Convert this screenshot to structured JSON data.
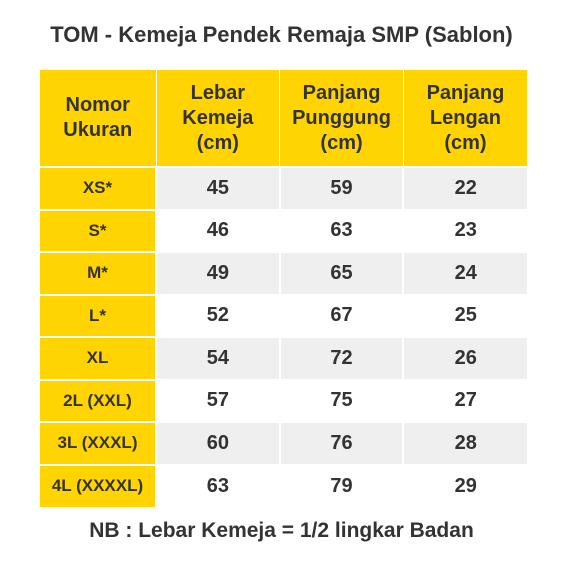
{
  "title": "TOM - Kemeja Pendek Remaja SMP (Sablon)",
  "table": {
    "headers": [
      [
        "Nomor",
        "Ukuran"
      ],
      [
        "Lebar",
        "Kemeja",
        "(cm)"
      ],
      [
        "Panjang",
        "Punggung",
        "(cm)"
      ],
      [
        "Panjang",
        "Lengan",
        "(cm)"
      ]
    ],
    "rows": [
      {
        "size": "XS*",
        "lebar": "45",
        "punggung": "59",
        "lengan": "22"
      },
      {
        "size": "S*",
        "lebar": "46",
        "punggung": "63",
        "lengan": "23"
      },
      {
        "size": "M*",
        "lebar": "49",
        "punggung": "65",
        "lengan": "24"
      },
      {
        "size": "L*",
        "lebar": "52",
        "punggung": "67",
        "lengan": "25"
      },
      {
        "size": "XL",
        "lebar": "54",
        "punggung": "72",
        "lengan": "26"
      },
      {
        "size": "2L (XXL)",
        "lebar": "57",
        "punggung": "75",
        "lengan": "27"
      },
      {
        "size": "3L (XXXL)",
        "lebar": "60",
        "punggung": "76",
        "lengan": "28"
      },
      {
        "size": "4L (XXXXL)",
        "lebar": "63",
        "punggung": "79",
        "lengan": "29"
      }
    ]
  },
  "note": "NB : Lebar Kemeja = 1/2 lingkar Badan",
  "colors": {
    "header_bg": "#ffd400",
    "row_alt_bg": "#efefef",
    "text": "#333333"
  }
}
